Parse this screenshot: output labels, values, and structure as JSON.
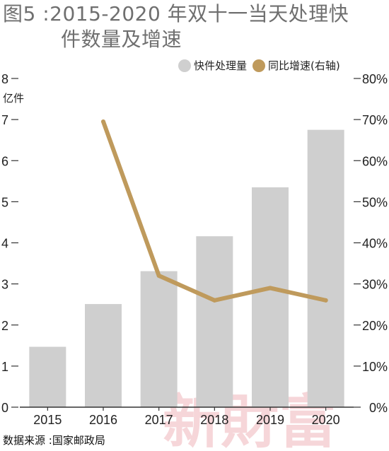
{
  "title": {
    "line1": "图5 :2015-2020 年双十一当天处理快",
    "line2": "件数量及增速"
  },
  "legend": {
    "bars_label": "快件处理量",
    "line_label": "同比增速(右轴)"
  },
  "unit_label": "亿件",
  "source": "数据来源 :国家邮政局",
  "watermark": "新財富",
  "colors": {
    "bar": "#cfcfcf",
    "line": "#bf9a5c",
    "axis": "#333333",
    "title": "#6f6f6f"
  },
  "chart_data": {
    "type": "bar",
    "categories": [
      "2015",
      "2016",
      "2017",
      "2018",
      "2019",
      "2020"
    ],
    "series": [
      {
        "name": "快件处理量",
        "axis": "left",
        "type": "bar",
        "values": [
          1.47,
          2.51,
          3.31,
          4.16,
          5.35,
          6.75
        ]
      },
      {
        "name": "同比增速(右轴)",
        "axis": "right",
        "type": "line",
        "values": [
          null,
          69.5,
          32.0,
          26.0,
          29.0,
          26.0
        ]
      }
    ],
    "y_left": {
      "ylim": [
        0,
        8
      ],
      "ticks": [
        "0",
        "1",
        "2",
        "3",
        "4",
        "5",
        "6",
        "7",
        "8"
      ]
    },
    "y_right": {
      "ylim": [
        0,
        80
      ],
      "ticks": [
        "0%",
        "10%",
        "20%",
        "30%",
        "40%",
        "50%",
        "60%",
        "70%",
        "80%"
      ]
    },
    "legend_position": "top-right",
    "grid": false
  }
}
